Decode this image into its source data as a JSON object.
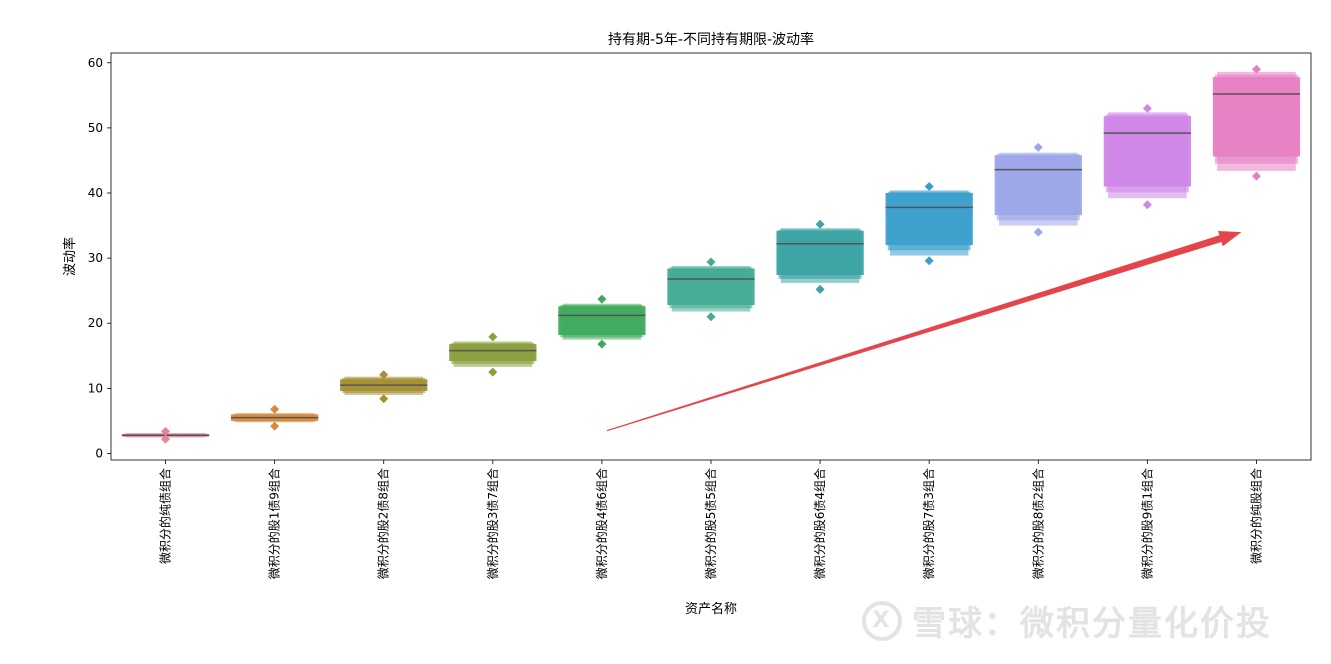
{
  "chart_data": {
    "type": "boxen",
    "title": "持有期-5年-不同持有期限-波动率",
    "xlabel": "资产名称",
    "ylabel": "波动率",
    "ylim": [
      -1,
      61.5
    ],
    "yticks": [
      0,
      10,
      20,
      30,
      40,
      50,
      60
    ],
    "grid": false,
    "categories": [
      "微积分的纯债组合",
      "微积分的股1债9组合",
      "微积分的股2债8组合",
      "微积分的股3债7组合",
      "微积分的股4债6组合",
      "微积分的股5债5组合",
      "微积分的股6债4组合",
      "微积分的股7债3组合",
      "微积分的股8债2组合",
      "微积分的股9债1组合",
      "微积分的纯股组合"
    ],
    "colors": [
      "#e6859c",
      "#d98a3e",
      "#a59035",
      "#8aa03d",
      "#3faa5e",
      "#45ab93",
      "#3ba4a4",
      "#3b9fcc",
      "#9da7e8",
      "#cf87e8",
      "#e680c3"
    ],
    "boxes": [
      {
        "median": 2.8,
        "q1": 2.6,
        "q3": 3.0,
        "o1": 2.45,
        "o3": 3.15,
        "min": 2.2,
        "max": 3.4
      },
      {
        "median": 5.5,
        "q1": 5.0,
        "q3": 6.0,
        "o1": 4.8,
        "o3": 6.2,
        "min": 4.2,
        "max": 6.8
      },
      {
        "median": 10.5,
        "q1": 9.6,
        "q3": 11.4,
        "o1": 9.0,
        "o3": 11.8,
        "min": 8.4,
        "max": 12.1
      },
      {
        "median": 15.8,
        "q1": 14.2,
        "q3": 16.8,
        "o1": 13.3,
        "o3": 17.2,
        "min": 12.5,
        "max": 17.9
      },
      {
        "median": 21.2,
        "q1": 18.2,
        "q3": 22.6,
        "o1": 17.5,
        "o3": 23.0,
        "min": 16.8,
        "max": 23.7
      },
      {
        "median": 26.8,
        "q1": 22.8,
        "q3": 28.4,
        "o1": 21.8,
        "o3": 28.8,
        "min": 21.0,
        "max": 29.4
      },
      {
        "median": 32.2,
        "q1": 27.4,
        "q3": 34.2,
        "o1": 26.2,
        "o3": 34.6,
        "min": 25.2,
        "max": 35.2
      },
      {
        "median": 37.8,
        "q1": 32.0,
        "q3": 40.0,
        "o1": 30.4,
        "o3": 40.4,
        "min": 29.6,
        "max": 41.0
      },
      {
        "median": 43.6,
        "q1": 36.6,
        "q3": 45.8,
        "o1": 35.0,
        "o3": 46.2,
        "min": 34.0,
        "max": 47.0
      },
      {
        "median": 49.2,
        "q1": 41.0,
        "q3": 51.8,
        "o1": 39.2,
        "o3": 52.4,
        "min": 38.2,
        "max": 53.0
      },
      {
        "median": 55.2,
        "q1": 45.6,
        "q3": 57.8,
        "o1": 43.4,
        "o3": 58.6,
        "min": 42.6,
        "max": 59.0
      }
    ],
    "annotation": {
      "type": "arrow",
      "from_category_index": 4,
      "from_y": 3.5,
      "to_category_index": 10,
      "to_y": 34.0,
      "color": "#e5454a"
    }
  },
  "watermark": {
    "logo": "X",
    "text": "雪球：微积分量化价投"
  }
}
